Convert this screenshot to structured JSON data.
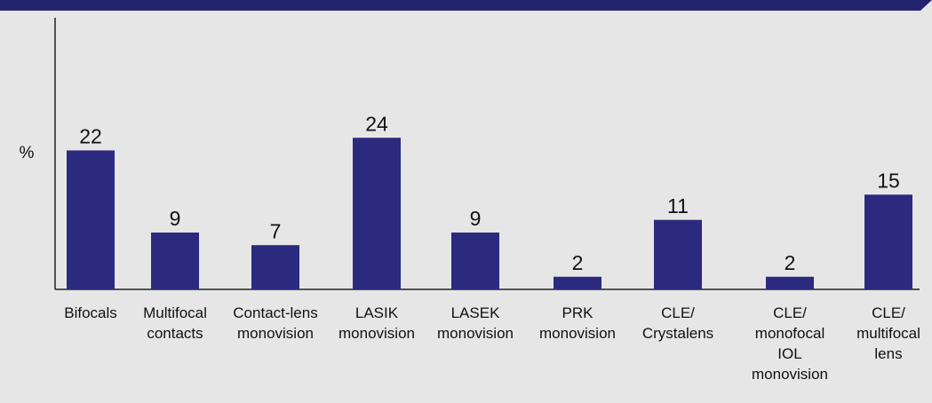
{
  "chart_data": {
    "type": "bar",
    "y_label": "%",
    "categories": [
      "Bifocals",
      "Multifocal\ncontacts",
      "Contact-lens\nmonovision",
      "LASIK\nmonovision",
      "LASEK\nmonovision",
      "PRK\nmonovision",
      "CLE/\nCrystalens",
      "CLE/\nmonofocal\nIOL\nmonovision",
      "CLE/\nmultifocal\nlens"
    ],
    "values": [
      22,
      9,
      7,
      24,
      9,
      2,
      11,
      2,
      15
    ],
    "color": "#2b2a7f",
    "ylim": [
      0,
      43
    ]
  }
}
